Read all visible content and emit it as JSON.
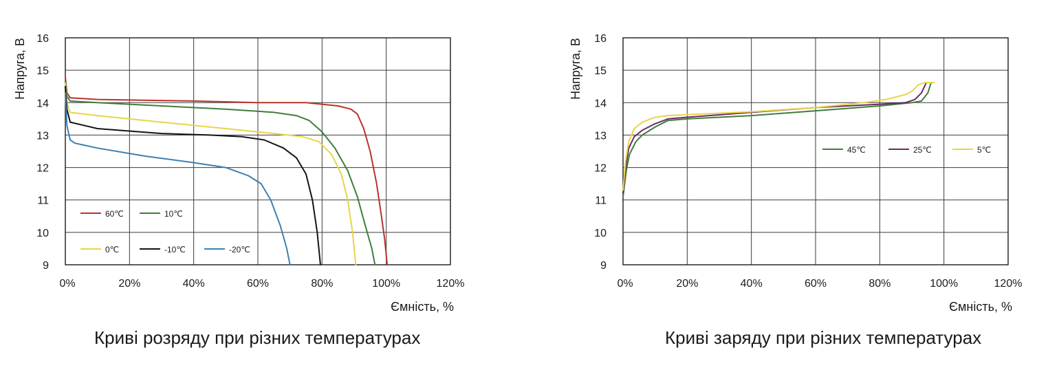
{
  "chart_data": [
    {
      "type": "line",
      "title": "Криві розряду при різних температурах",
      "xlabel": "Ємність, %",
      "ylabel": "Напруга, В",
      "xlim": [
        0,
        120
      ],
      "ylim": [
        9,
        16
      ],
      "x_ticks": [
        0,
        20,
        40,
        60,
        80,
        100,
        120
      ],
      "x_tick_labels": [
        "0%",
        "20%",
        "40%",
        "60%",
        "80%",
        "100%",
        "120%"
      ],
      "y_ticks": [
        9,
        10,
        11,
        12,
        13,
        14,
        15,
        16
      ],
      "y_tick_labels": [
        "9",
        "10",
        "11",
        "12",
        "13",
        "14",
        "15",
        "16"
      ],
      "grid": true,
      "legend_position": "bottom-left",
      "series": [
        {
          "name": "60℃",
          "color": "#b8322a",
          "points": [
            [
              0,
              14.8
            ],
            [
              0.5,
              14.3
            ],
            [
              1.5,
              14.15
            ],
            [
              10,
              14.1
            ],
            [
              40,
              14.05
            ],
            [
              60,
              14.0
            ],
            [
              75,
              14.0
            ],
            [
              85,
              13.9
            ],
            [
              89,
              13.8
            ],
            [
              91,
              13.65
            ],
            [
              93,
              13.2
            ],
            [
              95,
              12.5
            ],
            [
              97,
              11.5
            ],
            [
              98.5,
              10.5
            ],
            [
              99.5,
              9.8
            ],
            [
              100.3,
              9.0
            ]
          ]
        },
        {
          "name": "10℃",
          "color": "#3f7d3a",
          "points": [
            [
              0,
              14.7
            ],
            [
              0.5,
              14.2
            ],
            [
              1.5,
              14.05
            ],
            [
              10,
              14.0
            ],
            [
              30,
              13.9
            ],
            [
              50,
              13.8
            ],
            [
              65,
              13.7
            ],
            [
              72,
              13.6
            ],
            [
              76,
              13.45
            ],
            [
              80,
              13.1
            ],
            [
              84,
              12.6
            ],
            [
              88,
              11.9
            ],
            [
              91,
              11.1
            ],
            [
              93.5,
              10.2
            ],
            [
              95.5,
              9.5
            ],
            [
              96.5,
              9.0
            ]
          ]
        },
        {
          "name": "0℃",
          "color": "#e8d44a",
          "points": [
            [
              0,
              14.6
            ],
            [
              0.5,
              14.0
            ],
            [
              1.5,
              13.7
            ],
            [
              10,
              13.6
            ],
            [
              30,
              13.4
            ],
            [
              50,
              13.2
            ],
            [
              65,
              13.05
            ],
            [
              74,
              12.95
            ],
            [
              79,
              12.8
            ],
            [
              83,
              12.4
            ],
            [
              86,
              11.8
            ],
            [
              88,
              11.0
            ],
            [
              89.5,
              10.0
            ],
            [
              90.5,
              9.0
            ]
          ]
        },
        {
          "name": "-10℃",
          "color": "#141414",
          "points": [
            [
              0,
              14.5
            ],
            [
              0.5,
              13.8
            ],
            [
              1.5,
              13.4
            ],
            [
              10,
              13.2
            ],
            [
              30,
              13.05
            ],
            [
              45,
              13.0
            ],
            [
              55,
              12.95
            ],
            [
              62,
              12.85
            ],
            [
              68,
              12.6
            ],
            [
              72,
              12.3
            ],
            [
              75,
              11.8
            ],
            [
              77,
              11.0
            ],
            [
              78.5,
              10.0
            ],
            [
              79.5,
              9.0
            ]
          ]
        },
        {
          "name": "-20℃",
          "color": "#3c7fb1",
          "points": [
            [
              0,
              14.3
            ],
            [
              0.5,
              13.3
            ],
            [
              1.5,
              12.85
            ],
            [
              3,
              12.75
            ],
            [
              10,
              12.6
            ],
            [
              25,
              12.35
            ],
            [
              40,
              12.15
            ],
            [
              50,
              12.0
            ],
            [
              57,
              11.75
            ],
            [
              61,
              11.5
            ],
            [
              64,
              11.0
            ],
            [
              67,
              10.2
            ],
            [
              69,
              9.5
            ],
            [
              70,
              9.0
            ]
          ]
        }
      ]
    },
    {
      "type": "line",
      "title": "Криві заряду при різних температурах",
      "xlabel": "Ємність, %",
      "ylabel": "Напруга, В",
      "xlim": [
        0,
        120
      ],
      "ylim": [
        9,
        16
      ],
      "x_ticks": [
        0,
        20,
        40,
        60,
        80,
        100,
        120
      ],
      "x_tick_labels": [
        "0%",
        "20%",
        "40%",
        "60%",
        "80%",
        "100%",
        "120%"
      ],
      "y_ticks": [
        9,
        10,
        11,
        12,
        13,
        14,
        15,
        16
      ],
      "y_tick_labels": [
        "9",
        "10",
        "11",
        "12",
        "13",
        "14",
        "15",
        "16"
      ],
      "grid": true,
      "legend_position": "middle-right",
      "series": [
        {
          "name": "45℃",
          "color": "#3f7d3a",
          "points": [
            [
              0,
              11.1
            ],
            [
              1,
              11.9
            ],
            [
              2,
              12.4
            ],
            [
              4,
              12.8
            ],
            [
              6,
              13.0
            ],
            [
              10,
              13.25
            ],
            [
              14,
              13.45
            ],
            [
              20,
              13.5
            ],
            [
              40,
              13.6
            ],
            [
              60,
              13.75
            ],
            [
              80,
              13.9
            ],
            [
              90,
              14.0
            ],
            [
              93,
              14.05
            ],
            [
              95,
              14.3
            ],
            [
              96,
              14.62
            ]
          ]
        },
        {
          "name": "25℃",
          "color": "#6a2a63",
          "points": [
            [
              0,
              11.2
            ],
            [
              0.8,
              12.0
            ],
            [
              1.8,
              12.6
            ],
            [
              3.5,
              12.95
            ],
            [
              6,
              13.15
            ],
            [
              10,
              13.35
            ],
            [
              14,
              13.5
            ],
            [
              20,
              13.55
            ],
            [
              40,
              13.7
            ],
            [
              60,
              13.85
            ],
            [
              80,
              13.95
            ],
            [
              88,
              14.0
            ],
            [
              91,
              14.1
            ],
            [
              93,
              14.3
            ],
            [
              94.5,
              14.62
            ]
          ]
        },
        {
          "name": "5℃",
          "color": "#e8d44a",
          "points": [
            [
              0,
              11.3
            ],
            [
              0.8,
              12.2
            ],
            [
              1.8,
              12.8
            ],
            [
              3.5,
              13.2
            ],
            [
              6,
              13.4
            ],
            [
              10,
              13.55
            ],
            [
              14,
              13.6
            ],
            [
              20,
              13.63
            ],
            [
              40,
              13.72
            ],
            [
              60,
              13.85
            ],
            [
              75,
              14.0
            ],
            [
              82,
              14.1
            ],
            [
              88,
              14.25
            ],
            [
              90,
              14.35
            ],
            [
              92,
              14.55
            ],
            [
              94,
              14.62
            ],
            [
              97,
              14.62
            ]
          ]
        }
      ]
    }
  ]
}
